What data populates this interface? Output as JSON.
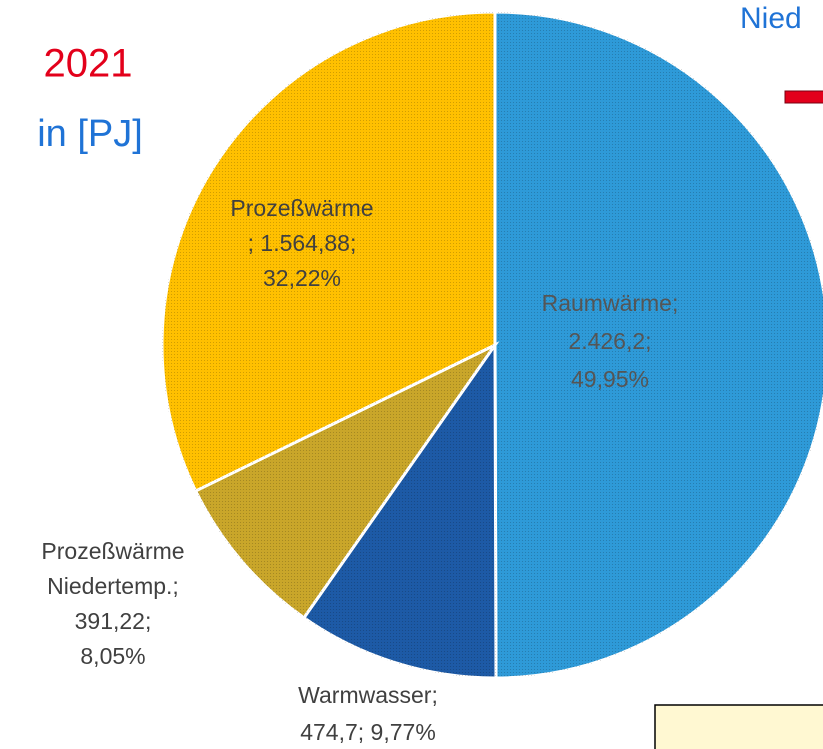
{
  "chart_data": {
    "type": "pie",
    "annotations": [
      "2021",
      "in [PJ]",
      "Nied"
    ],
    "values": [
      2426.2,
      474.7,
      391.22,
      1564.88
    ],
    "labels": [
      [
        "Raumwärme;",
        "2.426,2;",
        "49,95%"
      ],
      [
        "Warmwasser;",
        "474,7; 9,77%"
      ],
      [
        "Prozeßwärme",
        "Niedertemp.;",
        "391,22;",
        "8,05%"
      ],
      [
        "Prozeßwärme",
        "; 1.564,88;",
        "32,22%"
      ]
    ],
    "colors": [
      "#2e9ad8",
      "#1d5aa6",
      "#c9a62a",
      "#ffc000"
    ]
  }
}
